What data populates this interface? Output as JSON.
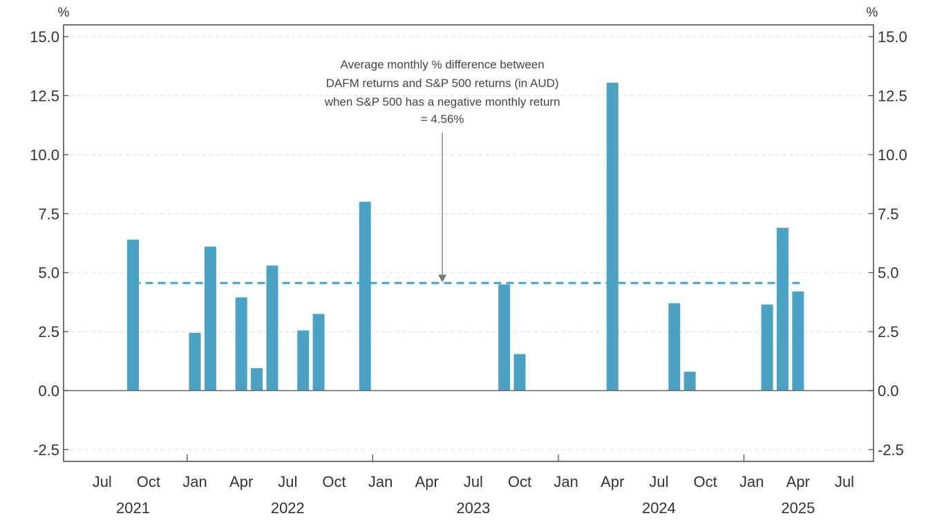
{
  "chart_data": {
    "type": "bar",
    "units": {
      "left": "%",
      "right": "%"
    },
    "y_axis": {
      "min": -3.0,
      "max": 15.5,
      "ticks": [
        15.0,
        12.5,
        10.0,
        7.5,
        5.0,
        2.5,
        0.0,
        -2.5
      ],
      "tick_labels": [
        "15.0",
        "12.5",
        "10.0",
        "7.5",
        "5.0",
        "2.5",
        "0.0",
        "-2.5"
      ]
    },
    "x_axis": {
      "start": "2021-05",
      "end": "2025-08",
      "month_ticks": [
        {
          "month": "2021-07",
          "label": "Jul"
        },
        {
          "month": "2021-10",
          "label": "Oct"
        },
        {
          "month": "2022-01",
          "label": "Jan"
        },
        {
          "month": "2022-04",
          "label": "Apr"
        },
        {
          "month": "2022-07",
          "label": "Jul"
        },
        {
          "month": "2022-10",
          "label": "Oct"
        },
        {
          "month": "2023-01",
          "label": "Jan"
        },
        {
          "month": "2023-04",
          "label": "Apr"
        },
        {
          "month": "2023-07",
          "label": "Jul"
        },
        {
          "month": "2023-10",
          "label": "Oct"
        },
        {
          "month": "2024-01",
          "label": "Jan"
        },
        {
          "month": "2024-04",
          "label": "Apr"
        },
        {
          "month": "2024-07",
          "label": "Jul"
        },
        {
          "month": "2024-10",
          "label": "Oct"
        },
        {
          "month": "2025-01",
          "label": "Jan"
        },
        {
          "month": "2025-04",
          "label": "Apr"
        },
        {
          "month": "2025-07",
          "label": "Jul"
        }
      ],
      "year_labels": [
        {
          "label": "2021",
          "month": "2021-09"
        },
        {
          "label": "2022",
          "month": "2022-07"
        },
        {
          "label": "2023",
          "month": "2023-07"
        },
        {
          "label": "2024",
          "month": "2024-07"
        },
        {
          "label": "2025",
          "month": "2025-04"
        }
      ]
    },
    "bars": [
      {
        "month": "2021-09",
        "value": 6.4
      },
      {
        "month": "2022-01",
        "value": 2.45
      },
      {
        "month": "2022-02",
        "value": 6.1
      },
      {
        "month": "2022-04",
        "value": 3.95
      },
      {
        "month": "2022-05",
        "value": 0.95
      },
      {
        "month": "2022-06",
        "value": 5.3
      },
      {
        "month": "2022-08",
        "value": 2.55
      },
      {
        "month": "2022-09",
        "value": 3.25
      },
      {
        "month": "2022-12",
        "value": 8.0
      },
      {
        "month": "2023-09",
        "value": 4.5
      },
      {
        "month": "2023-10",
        "value": 1.55
      },
      {
        "month": "2024-04",
        "value": 13.05
      },
      {
        "month": "2024-08",
        "value": 3.7
      },
      {
        "month": "2024-09",
        "value": 0.8
      },
      {
        "month": "2025-02",
        "value": 3.65
      },
      {
        "month": "2025-03",
        "value": 6.9
      },
      {
        "month": "2025-04",
        "value": 4.2
      }
    ],
    "average_line": {
      "value": 4.56,
      "from": "2021-09",
      "to": "2025-04"
    },
    "annotation": {
      "lines": [
        "Average monthly % difference between",
        "DAFM returns and S&P 500 returns (in AUD)",
        "when S&P 500 has a negative monthly return",
        "= 4.56%"
      ],
      "arrow_month": "2023-05"
    },
    "grid": true,
    "colors": {
      "bar": "#4aa3c4",
      "average_line": "#3ea6cc",
      "grid": "#e2e2e2",
      "axis": "#444444",
      "arrow": "#777777"
    }
  }
}
